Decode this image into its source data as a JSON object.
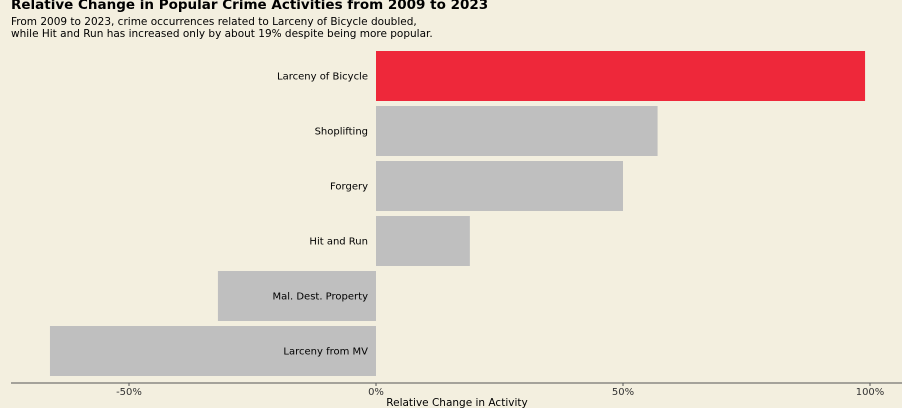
{
  "chart_data": {
    "type": "bar",
    "orientation": "horizontal",
    "title": "Relative Change in Popular Crime Activities from 2009 to 2023",
    "subtitle_lines": [
      "From 2009 to 2023, crime occurrences related to Larceny of Bicycle doubled,",
      "while Hit and Run has increased only by about 19% despite being more popular."
    ],
    "categories": [
      "Larceny of Bicycle",
      "Shoplifting",
      "Forgery",
      "Hit and Run",
      "Mal. Dest. Property",
      "Larceny from MV"
    ],
    "values": [
      99,
      57,
      50,
      19,
      -32,
      -66
    ],
    "highlight": "Larceny of Bicycle",
    "colors": {
      "highlight": "#ee283a",
      "default": "#bfbfbf",
      "background": "#f3efdf"
    },
    "xlabel": "Relative Change in Activity",
    "xticks": [
      {
        "value": -50,
        "label": "-50%"
      },
      {
        "value": 0,
        "label": "0%"
      },
      {
        "value": 50,
        "label": "50%"
      },
      {
        "value": 100,
        "label": "100%"
      }
    ],
    "xlim": [
      -74,
      106
    ],
    "grid": false
  }
}
